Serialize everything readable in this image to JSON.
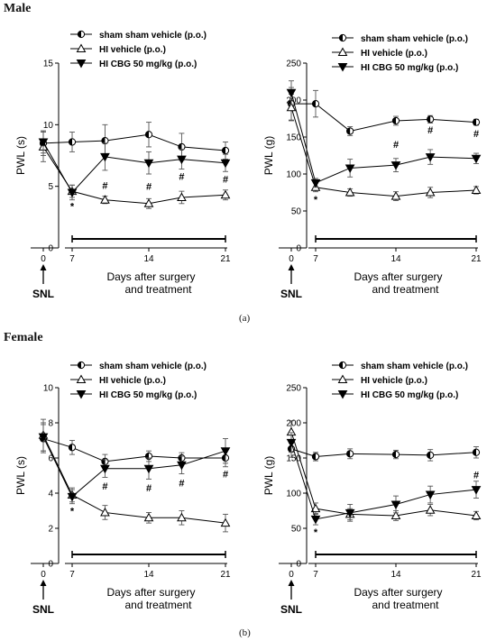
{
  "sections": [
    {
      "title": "Male",
      "panel_label": "(a)"
    },
    {
      "title": "Female",
      "panel_label": "(b)"
    }
  ],
  "chart_data": [
    {
      "type": "line",
      "section": "Male",
      "ylabel": "PWL (s)",
      "xlabel": "Days after surgery\nand treatment",
      "ylim": [
        0,
        15
      ],
      "yticks": [
        0,
        5,
        10,
        15
      ],
      "xticks": [
        0,
        7,
        14,
        21
      ],
      "event_label": "SNL",
      "series": [
        {
          "name": "sham sham vehicle (p.o.)",
          "marker": "half-circle",
          "x": [
            0,
            7,
            10,
            14,
            17,
            21
          ],
          "y": [
            8.5,
            8.6,
            8.7,
            9.2,
            8.2,
            7.9
          ],
          "err": [
            1.0,
            0.8,
            1.3,
            1.0,
            1.1,
            0.7
          ]
        },
        {
          "name": "HI vehicle (p.o.)",
          "marker": "open-triangle-up",
          "x": [
            0,
            7,
            10,
            14,
            17,
            21
          ],
          "y": [
            8.2,
            4.6,
            3.9,
            3.6,
            4.1,
            4.3
          ],
          "err": [
            1.2,
            0.5,
            0.3,
            0.4,
            0.5,
            0.4
          ]
        },
        {
          "name": "HI CBG 50 mg/kg (p.o.)",
          "marker": "filled-triangle-down",
          "x": [
            0,
            7,
            10,
            14,
            17,
            21
          ],
          "y": [
            8.6,
            4.5,
            7.4,
            6.9,
            7.2,
            6.9
          ],
          "err": [
            0.9,
            0.6,
            1.1,
            0.9,
            0.8,
            0.7
          ]
        }
      ],
      "annotations": [
        {
          "text": "*",
          "x": 7,
          "y": 3.4
        },
        {
          "text": "#",
          "x": 10,
          "y": 5.1
        },
        {
          "text": "#",
          "x": 14,
          "y": 5.0
        },
        {
          "text": "#",
          "x": 17,
          "y": 5.8
        },
        {
          "text": "#",
          "x": 21,
          "y": 5.6
        }
      ]
    },
    {
      "type": "line",
      "section": "Male",
      "ylabel": "PWL (g)",
      "xlabel": "Days after surgery\nand treatment",
      "ylim": [
        0,
        250
      ],
      "yticks": [
        0,
        50,
        100,
        150,
        200,
        250
      ],
      "xticks": [
        0,
        7,
        14,
        21
      ],
      "event_label": "SNL",
      "series": [
        {
          "name": "sham sham vehicle (p.o.)",
          "marker": "half-circle",
          "x": [
            0,
            7,
            10,
            14,
            17,
            21
          ],
          "y": [
            195,
            195,
            158,
            172,
            174,
            170
          ],
          "err": [
            22,
            18,
            6,
            6,
            5,
            4
          ]
        },
        {
          "name": "HI vehicle (p.o.)",
          "marker": "open-triangle-up",
          "x": [
            0,
            7,
            10,
            14,
            17,
            21
          ],
          "y": [
            190,
            82,
            75,
            70,
            75,
            78
          ],
          "err": [
            18,
            6,
            5,
            6,
            7,
            5
          ]
        },
        {
          "name": "HI CBG 50 mg/kg (p.o.)",
          "marker": "filled-triangle-down",
          "x": [
            0,
            7,
            10,
            14,
            17,
            21
          ],
          "y": [
            210,
            88,
            108,
            112,
            123,
            121
          ],
          "err": [
            16,
            6,
            12,
            9,
            10,
            7
          ]
        }
      ],
      "annotations": [
        {
          "text": "*",
          "x": 7,
          "y": 66
        },
        {
          "text": "#",
          "x": 14,
          "y": 140
        },
        {
          "text": "#",
          "x": 17,
          "y": 160
        },
        {
          "text": "#",
          "x": 21,
          "y": 155
        }
      ]
    },
    {
      "type": "line",
      "section": "Female",
      "ylabel": "PWL (s)",
      "xlabel": "Days after surgery\nand treatment",
      "ylim": [
        0,
        10
      ],
      "yticks": [
        0,
        2,
        4,
        6,
        8,
        10
      ],
      "xticks": [
        0,
        7,
        14,
        21
      ],
      "event_label": "SNL",
      "series": [
        {
          "name": "sham sham vehicle (p.o.)",
          "marker": "half-circle",
          "x": [
            0,
            7,
            10,
            14,
            17,
            21
          ],
          "y": [
            7.1,
            6.6,
            5.8,
            6.1,
            6.0,
            6.0
          ],
          "err": [
            0.8,
            0.4,
            0.4,
            0.3,
            0.3,
            0.5
          ]
        },
        {
          "name": "HI vehicle (p.o.)",
          "marker": "open-triangle-up",
          "x": [
            0,
            7,
            10,
            14,
            17,
            21
          ],
          "y": [
            7.3,
            3.9,
            2.9,
            2.6,
            2.6,
            2.3
          ],
          "err": [
            0.9,
            0.4,
            0.4,
            0.3,
            0.4,
            0.5
          ]
        },
        {
          "name": "HI CBG 50 mg/kg (p.o.)",
          "marker": "filled-triangle-down",
          "x": [
            0,
            7,
            10,
            14,
            17,
            21
          ],
          "y": [
            7.2,
            3.8,
            5.4,
            5.4,
            5.6,
            6.4
          ],
          "err": [
            0.8,
            0.4,
            0.5,
            0.6,
            0.5,
            0.7
          ]
        }
      ],
      "annotations": [
        {
          "text": "*",
          "x": 7,
          "y": 3.0
        },
        {
          "text": "#",
          "x": 10,
          "y": 4.4
        },
        {
          "text": "#",
          "x": 14,
          "y": 4.3
        },
        {
          "text": "#",
          "x": 17,
          "y": 4.6
        },
        {
          "text": "#",
          "x": 21,
          "y": 5.1
        }
      ]
    },
    {
      "type": "line",
      "section": "Female",
      "ylabel": "PWL (g)",
      "xlabel": "Days after surgery\nand treatment",
      "ylim": [
        0,
        250
      ],
      "yticks": [
        0,
        50,
        100,
        150,
        200,
        250
      ],
      "xticks": [
        0,
        7,
        14,
        21
      ],
      "event_label": "SNL",
      "series": [
        {
          "name": "sham sham vehicle (p.o.)",
          "marker": "half-circle",
          "x": [
            0,
            7,
            10,
            14,
            17,
            21
          ],
          "y": [
            163,
            152,
            156,
            155,
            154,
            158
          ],
          "err": [
            12,
            6,
            7,
            6,
            8,
            8
          ]
        },
        {
          "name": "HI vehicle (p.o.)",
          "marker": "open-triangle-up",
          "x": [
            0,
            7,
            10,
            14,
            17,
            21
          ],
          "y": [
            187,
            78,
            70,
            68,
            76,
            68
          ],
          "err": [
            16,
            8,
            8,
            7,
            8,
            6
          ]
        },
        {
          "name": "HI CBG 50 mg/kg (p.o.)",
          "marker": "filled-triangle-down",
          "x": [
            0,
            7,
            10,
            14,
            17,
            21
          ],
          "y": [
            172,
            63,
            72,
            84,
            98,
            105
          ],
          "err": [
            14,
            8,
            12,
            12,
            12,
            12
          ]
        }
      ],
      "annotations": [
        {
          "text": "*",
          "x": 7,
          "y": 45
        },
        {
          "text": "#",
          "x": 21,
          "y": 126
        }
      ]
    }
  ]
}
